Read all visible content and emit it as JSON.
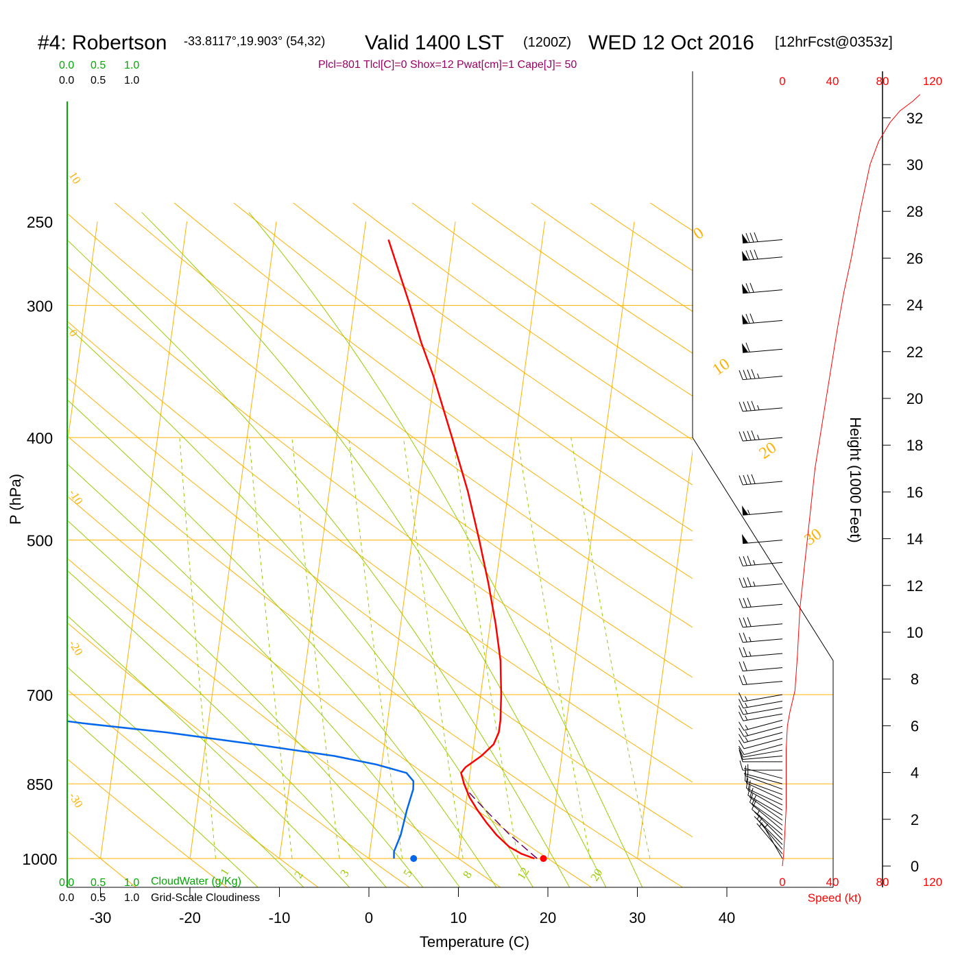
{
  "header": {
    "station": "#4: Robertson",
    "coords": "-33.8117°,19.903° (54,32)",
    "valid": "Valid 1400 LST",
    "utc": "(1200Z)",
    "date": "WED 12 Oct 2016",
    "forecast": "[12hrFcst@0353z]",
    "indices": "Plcl=801 Tlcl[C]=0 Shox=12 Pwat[cm]=1 Cape[J]= 50"
  },
  "colors": {
    "temperature": "#ff0000",
    "dewpoint": "#0066ee",
    "isotherm": "#ffb000",
    "dry_adiabat": "#ffb000",
    "moist_adiabat": "#99cc00",
    "mixing_ratio": "#99cc00",
    "parcel": "#660066",
    "indices_text": "#990066",
    "cloud_water": "#00aa00",
    "speed": "#ff0000"
  },
  "scales": {
    "cloud_water_ticks": [
      "0.0",
      "0.5",
      "1.0"
    ],
    "cloudiness_ticks": [
      "0.0",
      "0.5",
      "1.0"
    ],
    "cloud_water_label": "CloudWater (g/Kg)",
    "cloudiness_label": "Grid-Scale Cloudiness",
    "speed_ticks": [
      "0",
      "40",
      "80",
      "120"
    ],
    "speed_label": "Speed (kt)"
  },
  "chart_data": {
    "type": "skew-t",
    "xlabel": "Temperature (C)",
    "ylabel": "P (hPa)",
    "y2label": "Height (1000 Feet)",
    "x_ticks": [
      -30,
      -20,
      -10,
      0,
      10,
      20,
      30,
      40
    ],
    "p_ticks": [
      250,
      300,
      400,
      500,
      700,
      850,
      1000
    ],
    "height_ticks_kft": [
      0,
      2,
      4,
      6,
      8,
      10,
      12,
      14,
      16,
      18,
      20,
      22,
      24,
      26,
      28,
      30,
      32
    ],
    "isotherm_labels": [
      {
        "t": 10,
        "text": "10"
      },
      {
        "t": 0,
        "text": "0"
      },
      {
        "t": -10,
        "text": "-10"
      },
      {
        "t": -20,
        "text": "-20"
      },
      {
        "t": -30,
        "text": "-30"
      }
    ],
    "skew_labels": [
      "0",
      "10",
      "20",
      "30"
    ],
    "mixing_ratio_labels": [
      "1",
      "2",
      "3",
      "5",
      "8",
      "12",
      "20"
    ],
    "temperature_profile": [
      [
        1000,
        18.5
      ],
      [
        990,
        17.0
      ],
      [
        975,
        15.5
      ],
      [
        950,
        13.9
      ],
      [
        925,
        12.6
      ],
      [
        900,
        11.4
      ],
      [
        875,
        10.3
      ],
      [
        850,
        9.5
      ],
      [
        830,
        9.0
      ],
      [
        820,
        9.4
      ],
      [
        800,
        11.0
      ],
      [
        780,
        12.2
      ],
      [
        760,
        12.6
      ],
      [
        740,
        12.6
      ],
      [
        700,
        12.3
      ],
      [
        650,
        11.7
      ],
      [
        600,
        10.6
      ],
      [
        550,
        9.2
      ],
      [
        500,
        7.5
      ],
      [
        450,
        5.5
      ],
      [
        400,
        2.9
      ],
      [
        350,
        -0.1
      ],
      [
        325,
        -2.0
      ],
      [
        300,
        -3.8
      ],
      [
        260,
        -7.2
      ]
    ],
    "dewpoint_profile": [
      [
        1000,
        2.8
      ],
      [
        985,
        2.7
      ],
      [
        950,
        3.2
      ],
      [
        900,
        3.5
      ],
      [
        860,
        3.9
      ],
      [
        845,
        3.8
      ],
      [
        830,
        2.9
      ],
      [
        815,
        -0.6
      ],
      [
        800,
        -5.4
      ],
      [
        780,
        -14.5
      ],
      [
        760,
        -24.5
      ],
      [
        745,
        -34.0
      ],
      [
        700,
        -59.0
      ],
      [
        650,
        -68.0
      ],
      [
        610,
        -72.0
      ],
      [
        570,
        -74.0
      ],
      [
        540,
        -73.8
      ],
      [
        510,
        -74.0
      ],
      [
        490,
        -75.5
      ],
      [
        450,
        -80.0
      ],
      [
        400,
        -83.0
      ],
      [
        350,
        -84.8
      ],
      [
        325,
        -87.5
      ],
      [
        300,
        -90.5
      ],
      [
        285,
        -91.8
      ],
      [
        260,
        -93.8
      ]
    ],
    "parcel_profile": [
      [
        1000,
        18.8
      ],
      [
        950,
        15.4
      ],
      [
        900,
        12.3
      ],
      [
        860,
        9.8
      ],
      [
        845,
        9.3
      ]
    ],
    "surface_temperature": 19.5,
    "surface_dewpoint": 5.0,
    "wind_speed_profile_kt": [
      [
        0.0,
        0
      ],
      [
        0.5,
        1
      ],
      [
        1.5,
        2
      ],
      [
        2.5,
        3
      ],
      [
        3.5,
        3
      ],
      [
        5.0,
        3
      ],
      [
        6.0,
        4
      ],
      [
        6.6,
        6
      ],
      [
        7.5,
        10
      ],
      [
        9.0,
        12
      ],
      [
        11.0,
        14
      ],
      [
        13.0,
        18
      ],
      [
        15.0,
        22
      ],
      [
        17.0,
        26
      ],
      [
        19.0,
        32
      ],
      [
        21.0,
        38
      ],
      [
        23.0,
        44
      ],
      [
        24.5,
        49
      ],
      [
        26.0,
        55
      ],
      [
        28.0,
        62
      ],
      [
        30.0,
        70
      ],
      [
        31.0,
        77
      ],
      [
        31.8,
        86
      ],
      [
        32.3,
        94
      ],
      [
        32.7,
        104
      ],
      [
        33.0,
        110
      ]
    ],
    "wind_barbs": [
      {
        "p": 1000,
        "speed_kt": 5,
        "dir": 330
      },
      {
        "p": 990,
        "speed_kt": 5,
        "dir": 320
      },
      {
        "p": 980,
        "speed_kt": 5,
        "dir": 320
      },
      {
        "p": 970,
        "speed_kt": 5,
        "dir": 315
      },
      {
        "p": 960,
        "speed_kt": 5,
        "dir": 315
      },
      {
        "p": 950,
        "speed_kt": 10,
        "dir": 310
      },
      {
        "p": 940,
        "speed_kt": 10,
        "dir": 310
      },
      {
        "p": 930,
        "speed_kt": 10,
        "dir": 305
      },
      {
        "p": 920,
        "speed_kt": 10,
        "dir": 305
      },
      {
        "p": 910,
        "speed_kt": 10,
        "dir": 300
      },
      {
        "p": 900,
        "speed_kt": 10,
        "dir": 300
      },
      {
        "p": 890,
        "speed_kt": 10,
        "dir": 295
      },
      {
        "p": 880,
        "speed_kt": 10,
        "dir": 295
      },
      {
        "p": 870,
        "speed_kt": 10,
        "dir": 290
      },
      {
        "p": 860,
        "speed_kt": 10,
        "dir": 290
      },
      {
        "p": 850,
        "speed_kt": 5,
        "dir": 285
      },
      {
        "p": 840,
        "speed_kt": 5,
        "dir": 285
      },
      {
        "p": 825,
        "speed_kt": 10,
        "dir": 270
      },
      {
        "p": 810,
        "speed_kt": 10,
        "dir": 270
      },
      {
        "p": 800,
        "speed_kt": 10,
        "dir": 265
      },
      {
        "p": 790,
        "speed_kt": 10,
        "dir": 260
      },
      {
        "p": 780,
        "speed_kt": 10,
        "dir": 255
      },
      {
        "p": 770,
        "speed_kt": 10,
        "dir": 255
      },
      {
        "p": 760,
        "speed_kt": 15,
        "dir": 255
      },
      {
        "p": 750,
        "speed_kt": 15,
        "dir": 255
      },
      {
        "p": 740,
        "speed_kt": 15,
        "dir": 255
      },
      {
        "p": 730,
        "speed_kt": 15,
        "dir": 260
      },
      {
        "p": 720,
        "speed_kt": 15,
        "dir": 260
      },
      {
        "p": 710,
        "speed_kt": 15,
        "dir": 260
      },
      {
        "p": 700,
        "speed_kt": 15,
        "dir": 260
      },
      {
        "p": 680,
        "speed_kt": 20,
        "dir": 265
      },
      {
        "p": 660,
        "speed_kt": 20,
        "dir": 265
      },
      {
        "p": 640,
        "speed_kt": 25,
        "dir": 265
      },
      {
        "p": 620,
        "speed_kt": 25,
        "dir": 265
      },
      {
        "p": 600,
        "speed_kt": 30,
        "dir": 265
      },
      {
        "p": 575,
        "speed_kt": 30,
        "dir": 265
      },
      {
        "p": 550,
        "speed_kt": 35,
        "dir": 265
      },
      {
        "p": 525,
        "speed_kt": 35,
        "dir": 265
      },
      {
        "p": 500,
        "speed_kt": 50,
        "dir": 265
      },
      {
        "p": 470,
        "speed_kt": 55,
        "dir": 265
      },
      {
        "p": 440,
        "speed_kt": 40,
        "dir": 265
      },
      {
        "p": 400,
        "speed_kt": 45,
        "dir": 265
      },
      {
        "p": 375,
        "speed_kt": 45,
        "dir": 265
      },
      {
        "p": 350,
        "speed_kt": 45,
        "dir": 265
      },
      {
        "p": 330,
        "speed_kt": 60,
        "dir": 265
      },
      {
        "p": 310,
        "speed_kt": 70,
        "dir": 265
      },
      {
        "p": 290,
        "speed_kt": 70,
        "dir": 265
      },
      {
        "p": 270,
        "speed_kt": 80,
        "dir": 265
      },
      {
        "p": 260,
        "speed_kt": 80,
        "dir": 265
      }
    ]
  }
}
